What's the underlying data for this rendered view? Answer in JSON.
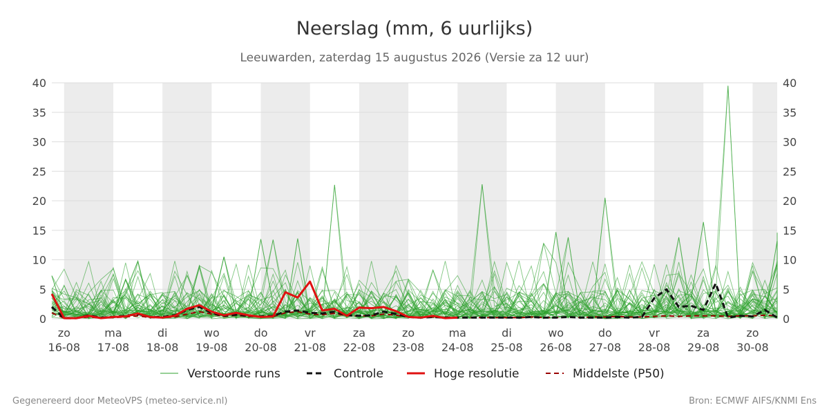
{
  "colors": {
    "ensemble": "#2ca02c",
    "control": "#111111",
    "high_res": "#e01010",
    "median": "#990000",
    "night_band": "#ececec",
    "grid": "#dddddd"
  },
  "chart_data": {
    "type": "line",
    "title": "Neerslag (mm, 6 uurlijks)",
    "subtitle": "Leeuwarden, zaterdag 15 augustus 2026 (Versie za 12 uur)",
    "ylim": [
      0,
      40
    ],
    "yticks": [
      0,
      5,
      10,
      15,
      20,
      25,
      30,
      35,
      40
    ],
    "y_axes": "left and right",
    "grid": true,
    "x_range_days": [
      15.75,
      30.5
    ],
    "x_ticks": [
      {
        "day": "zo",
        "date": "16-08"
      },
      {
        "day": "ma",
        "date": "17-08"
      },
      {
        "day": "di",
        "date": "18-08"
      },
      {
        "day": "wo",
        "date": "19-08"
      },
      {
        "day": "do",
        "date": "20-08"
      },
      {
        "day": "vr",
        "date": "21-08"
      },
      {
        "day": "za",
        "date": "22-08"
      },
      {
        "day": "zo",
        "date": "23-08"
      },
      {
        "day": "ma",
        "date": "24-08"
      },
      {
        "day": "di",
        "date": "25-08"
      },
      {
        "day": "wo",
        "date": "26-08"
      },
      {
        "day": "do",
        "date": "27-08"
      },
      {
        "day": "vr",
        "date": "28-08"
      },
      {
        "day": "za",
        "date": "29-08"
      },
      {
        "day": "zo",
        "date": "30-08"
      }
    ],
    "shaded_days": [
      "16-08",
      "18-08",
      "20-08",
      "22-08",
      "24-08",
      "26-08",
      "28-08",
      "30-08"
    ],
    "legend_position": "bottom",
    "legend": [
      "Verstoorde runs",
      "Controle",
      "Hoge resolutie",
      "Middelste (P50)"
    ],
    "series": [
      {
        "name": "Hoge resolutie",
        "style": "solid",
        "x": [
          "15-08 18:00",
          "16-08 00:00",
          "16-08 06:00",
          "16-08 12:00",
          "16-08 18:00",
          "17-08 00:00",
          "17-08 06:00",
          "17-08 12:00",
          "17-08 18:00",
          "18-08 00:00",
          "18-08 06:00",
          "18-08 12:00",
          "18-08 18:00",
          "19-08 00:00",
          "19-08 06:00",
          "19-08 12:00",
          "19-08 18:00",
          "20-08 00:00",
          "20-08 06:00",
          "20-08 12:00",
          "20-08 18:00",
          "21-08 00:00",
          "21-08 06:00",
          "21-08 12:00",
          "21-08 18:00",
          "22-08 00:00",
          "22-08 06:00",
          "22-08 12:00",
          "22-08 18:00",
          "23-08 00:00",
          "23-08 06:00",
          "23-08 12:00",
          "23-08 18:00",
          "24-08 00:00"
        ],
        "values": [
          4.2,
          0.1,
          0.1,
          0.5,
          0.1,
          0.3,
          0.4,
          0.9,
          0.3,
          0.2,
          0.5,
          1.7,
          2.3,
          1.2,
          0.6,
          1.0,
          0.6,
          0.3,
          0.4,
          4.5,
          3.6,
          6.3,
          1.4,
          1.7,
          0.5,
          1.9,
          1.8,
          2.0,
          1.3,
          0.3,
          0.2,
          0.5,
          0.1,
          0.2
        ]
      },
      {
        "name": "Controle",
        "style": "dashed",
        "x": [
          "15-08 18:00",
          "16-08 00:00",
          "16-08 06:00",
          "16-08 12:00",
          "16-08 18:00",
          "17-08 00:00",
          "17-08 06:00",
          "17-08 12:00",
          "17-08 18:00",
          "18-08 00:00",
          "18-08 06:00",
          "18-08 12:00",
          "18-08 18:00",
          "19-08 00:00",
          "19-08 06:00",
          "19-08 12:00",
          "19-08 18:00",
          "20-08 00:00",
          "20-08 06:00",
          "20-08 12:00",
          "20-08 18:00",
          "21-08 00:00",
          "21-08 06:00",
          "21-08 12:00",
          "21-08 18:00",
          "22-08 00:00",
          "22-08 06:00",
          "22-08 12:00",
          "22-08 18:00",
          "23-08 00:00",
          "23-08 06:00",
          "23-08 12:00",
          "23-08 18:00",
          "24-08 00:00",
          "24-08 06:00",
          "24-08 12:00",
          "24-08 18:00",
          "25-08 00:00",
          "25-08 06:00",
          "25-08 12:00",
          "25-08 18:00",
          "26-08 00:00",
          "26-08 06:00",
          "26-08 12:00",
          "26-08 18:00",
          "27-08 00:00",
          "27-08 06:00",
          "27-08 12:00",
          "27-08 18:00",
          "28-08 00:00",
          "28-08 06:00",
          "28-08 12:00",
          "28-08 18:00",
          "29-08 00:00",
          "29-08 06:00",
          "29-08 12:00",
          "29-08 18:00",
          "30-08 00:00",
          "30-08 06:00",
          "30-08 12:00"
        ],
        "values": [
          2.0,
          0.1,
          0.1,
          0.6,
          0.2,
          0.3,
          0.5,
          0.8,
          0.3,
          0.3,
          0.6,
          1.5,
          2.0,
          1.0,
          0.5,
          0.7,
          0.5,
          0.4,
          0.5,
          1.2,
          1.4,
          1.0,
          0.9,
          1.2,
          0.6,
          0.5,
          0.6,
          1.2,
          0.8,
          0.3,
          0.2,
          0.3,
          0.2,
          0.2,
          0.2,
          0.2,
          0.2,
          0.2,
          0.2,
          0.3,
          0.2,
          0.2,
          0.3,
          0.2,
          0.2,
          0.2,
          0.3,
          0.2,
          0.3,
          3.5,
          5.0,
          2.0,
          2.2,
          1.5,
          6.0,
          0.2,
          0.5,
          0.4,
          1.5,
          0.2
        ]
      },
      {
        "name": "Middelste (P50)",
        "style": "dashed",
        "x": [
          "15-08 18:00",
          "16-08 00:00",
          "16-08 06:00",
          "16-08 12:00",
          "16-08 18:00",
          "17-08 00:00",
          "17-08 06:00",
          "17-08 12:00",
          "17-08 18:00",
          "18-08 00:00",
          "18-08 06:00",
          "18-08 12:00",
          "18-08 18:00",
          "19-08 00:00",
          "19-08 06:00",
          "19-08 12:00",
          "19-08 18:00",
          "20-08 00:00",
          "20-08 06:00",
          "20-08 12:00",
          "20-08 18:00",
          "21-08 00:00",
          "21-08 06:00",
          "21-08 12:00",
          "21-08 18:00",
          "22-08 00:00",
          "22-08 06:00",
          "22-08 12:00",
          "22-08 18:00",
          "23-08 00:00",
          "23-08 06:00",
          "23-08 12:00",
          "23-08 18:00",
          "24-08 00:00",
          "24-08 06:00",
          "24-08 12:00",
          "24-08 18:00",
          "25-08 00:00",
          "25-08 06:00",
          "25-08 12:00",
          "25-08 18:00",
          "26-08 00:00",
          "26-08 06:00",
          "26-08 12:00",
          "26-08 18:00",
          "27-08 00:00",
          "27-08 06:00",
          "27-08 12:00",
          "27-08 18:00",
          "28-08 00:00",
          "28-08 06:00",
          "28-08 12:00",
          "28-08 18:00",
          "29-08 00:00",
          "29-08 06:00",
          "29-08 12:00",
          "29-08 18:00",
          "30-08 00:00",
          "30-08 06:00",
          "30-08 12:00"
        ],
        "values": [
          1.0,
          0.1,
          0.1,
          0.3,
          0.1,
          0.2,
          0.3,
          0.5,
          0.2,
          0.2,
          0.3,
          0.8,
          1.2,
          0.8,
          0.4,
          0.6,
          0.4,
          0.3,
          0.4,
          1.0,
          1.2,
          0.8,
          0.7,
          0.9,
          0.5,
          0.5,
          0.5,
          0.8,
          0.6,
          0.3,
          0.2,
          0.3,
          0.2,
          0.2,
          0.2,
          0.2,
          0.2,
          0.2,
          0.2,
          0.3,
          0.2,
          0.2,
          0.3,
          0.2,
          0.3,
          0.3,
          0.4,
          0.3,
          0.3,
          0.4,
          0.5,
          0.4,
          0.5,
          0.5,
          0.5,
          0.4,
          0.5,
          0.5,
          0.6,
          0.5
        ]
      }
    ],
    "ensemble_runs": {
      "name": "Verstoorde runs",
      "peaks": [
        {
          "x": "15-08 18:00",
          "value": 7.3
        },
        {
          "x": "17-08 06:00",
          "value": 6.7
        },
        {
          "x": "18-08 18:00",
          "value": 9.0
        },
        {
          "x": "19-08 06:00",
          "value": 10.5
        },
        {
          "x": "20-08 00:00",
          "value": 13.5
        },
        {
          "x": "20-08 06:00",
          "value": 13.4
        },
        {
          "x": "20-08 18:00",
          "value": 13.6
        },
        {
          "x": "21-08 12:00",
          "value": 22.7
        },
        {
          "x": "24-08 12:00",
          "value": 22.8
        },
        {
          "x": "25-08 18:00",
          "value": 12.8
        },
        {
          "x": "26-08 00:00",
          "value": 14.7
        },
        {
          "x": "26-08 06:00",
          "value": 13.8
        },
        {
          "x": "27-08 00:00",
          "value": 20.5
        },
        {
          "x": "28-08 12:00",
          "value": 13.8
        },
        {
          "x": "29-08 00:00",
          "value": 16.4
        },
        {
          "x": "29-08 12:00",
          "value": 39.5
        },
        {
          "x": "30-08 12:00",
          "value": 13.2
        },
        {
          "x": "30-08 18:00",
          "value": 14.6
        }
      ]
    }
  },
  "legend": {
    "ensemble": "Verstoorde runs",
    "control": "Controle",
    "high_res": "Hoge resolutie",
    "median": "Middelste (P50)"
  },
  "footer": {
    "left": "Gegenereerd door MeteoVPS (meteo-service.nl)",
    "right": "Bron: ECMWF AIFS/KNMI Ens"
  }
}
